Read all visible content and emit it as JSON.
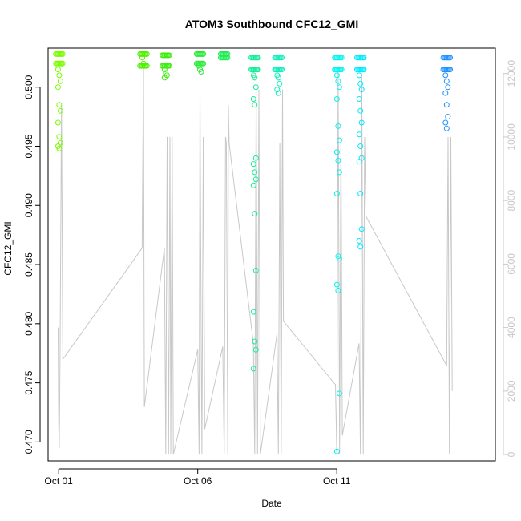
{
  "chart_data": {
    "type": "scatter",
    "title": "ATOM3 Southbound CFC12_GMI",
    "xlabel": "Date",
    "ylabel": "CFC12_GMI",
    "x_ticks": [
      "Oct 01",
      "Oct 06",
      "Oct 11"
    ],
    "x_tick_days": [
      1,
      6,
      11
    ],
    "xlim_days": [
      0.62,
      16.7
    ],
    "ylim": [
      0.4684,
      0.5033
    ],
    "y_ticks": [
      0.47,
      0.475,
      0.48,
      0.485,
      0.49,
      0.495,
      0.5
    ],
    "y_tick_labels": [
      "0.470",
      "0.475",
      "0.480",
      "0.485",
      "0.490",
      "0.495",
      "0.500"
    ],
    "y2lim": [
      -200,
      12800
    ],
    "y2_ticks": [
      0,
      2000,
      4000,
      6000,
      8000,
      10000,
      12000
    ],
    "y2_tick_labels": [
      "0",
      "2000",
      "4000",
      "6000",
      "8000",
      "10000",
      "12000"
    ],
    "y2_color": "#c8c8c8",
    "grid": false,
    "legend": "none",
    "point_color_scale": "date (green to blue)",
    "flights": [
      {
        "day": 1.02,
        "color": "#7cfc00",
        "top": [
          0.5028,
          0.502
        ],
        "low": [
          0.5015,
          0.501,
          0.5005,
          0.5,
          0.4985,
          0.498,
          0.497,
          0.4958,
          0.4953,
          0.495,
          0.4948
        ]
      },
      {
        "day": 4.05,
        "color": "#52f000",
        "top": [
          0.5028,
          0.5018
        ],
        "low": [
          0.5025,
          0.502
        ]
      },
      {
        "day": 4.85,
        "color": "#3fec10",
        "top": [
          0.5027,
          0.5018
        ],
        "low": [
          0.5015,
          0.5012,
          0.501,
          0.5008
        ]
      },
      {
        "day": 6.08,
        "color": "#2cea38",
        "top": [
          0.5028,
          0.502
        ],
        "low": [
          0.5018,
          0.5015,
          0.5013
        ]
      },
      {
        "day": 6.95,
        "color": "#22ea55",
        "top": [
          0.5028,
          0.5025
        ],
        "low": []
      },
      {
        "day": 8.05,
        "color": "#15ec98",
        "top": [
          0.5025,
          0.5015
        ],
        "low": [
          0.501,
          0.5008,
          0.5,
          0.499,
          0.4985,
          0.494,
          0.4935,
          0.4928,
          0.4922,
          0.4917,
          0.4893,
          0.4845,
          0.481,
          0.4785,
          0.4778,
          0.4762
        ]
      },
      {
        "day": 8.9,
        "color": "#10eebb",
        "top": [
          0.5025,
          0.5015
        ],
        "low": [
          0.501,
          0.5008,
          0.5003,
          0.4998,
          0.4995
        ]
      },
      {
        "day": 11.05,
        "color": "#00f4f0",
        "top": [
          0.5025,
          0.5015
        ],
        "low": [
          0.501,
          0.5005,
          0.5,
          0.499,
          0.4967,
          0.4955,
          0.4945,
          0.4938,
          0.4928,
          0.491,
          0.4857,
          0.4855,
          0.4833,
          0.4828,
          0.4741,
          0.4692
        ]
      },
      {
        "day": 11.85,
        "color": "#00eaff",
        "top": [
          0.5025,
          0.5015
        ],
        "low": [
          0.501,
          0.5003,
          0.4998,
          0.499,
          0.498,
          0.497,
          0.496,
          0.495,
          0.494,
          0.4937,
          0.491,
          0.488,
          0.487,
          0.4865
        ]
      },
      {
        "day": 14.95,
        "color": "#1e90ff",
        "top": [
          0.5025,
          0.5015
        ],
        "low": [
          0.501,
          0.5005,
          0.5,
          0.4995,
          0.4985,
          0.4975,
          0.497,
          0.4965
        ]
      }
    ],
    "altitude_track": [
      [
        0.98,
        4000
      ],
      [
        1.0,
        1000
      ],
      [
        1.02,
        200
      ],
      [
        1.05,
        3000
      ],
      [
        1.1,
        11000
      ],
      [
        1.15,
        3000
      ],
      [
        4.0,
        6500
      ],
      [
        4.05,
        12200
      ],
      [
        4.08,
        1500
      ],
      [
        4.8,
        6500
      ],
      [
        4.85,
        0
      ],
      [
        4.9,
        10000
      ],
      [
        4.95,
        0
      ],
      [
        5.0,
        10000
      ],
      [
        5.03,
        0
      ],
      [
        5.08,
        10000
      ],
      [
        5.12,
        0
      ],
      [
        6.0,
        3300
      ],
      [
        6.05,
        0
      ],
      [
        6.08,
        11500
      ],
      [
        6.12,
        4000
      ],
      [
        6.15,
        0
      ],
      [
        6.2,
        10000
      ],
      [
        6.25,
        800
      ],
      [
        6.9,
        3400
      ],
      [
        6.95,
        0
      ],
      [
        7.0,
        10000
      ],
      [
        7.03,
        9800
      ],
      [
        7.08,
        0
      ],
      [
        7.1,
        11000
      ],
      [
        7.13,
        9800
      ],
      [
        8.0,
        3500
      ],
      [
        8.05,
        0
      ],
      [
        8.1,
        11500
      ],
      [
        8.15,
        0
      ],
      [
        8.2,
        11500
      ],
      [
        8.25,
        0
      ],
      [
        8.85,
        3800
      ],
      [
        8.9,
        0
      ],
      [
        8.95,
        9800
      ],
      [
        9.0,
        0
      ],
      [
        9.05,
        11500
      ],
      [
        9.08,
        4200
      ],
      [
        10.95,
        2200
      ],
      [
        11.0,
        0
      ],
      [
        11.05,
        12200
      ],
      [
        11.1,
        0
      ],
      [
        11.15,
        10000
      ],
      [
        11.2,
        600
      ],
      [
        11.8,
        3500
      ],
      [
        11.85,
        0
      ],
      [
        11.9,
        12000
      ],
      [
        11.95,
        0
      ],
      [
        12.0,
        10000
      ],
      [
        12.05,
        7500
      ],
      [
        14.95,
        2800
      ],
      [
        15.0,
        10000
      ],
      [
        15.05,
        0
      ],
      [
        15.1,
        10000
      ],
      [
        15.15,
        2000
      ]
    ]
  }
}
